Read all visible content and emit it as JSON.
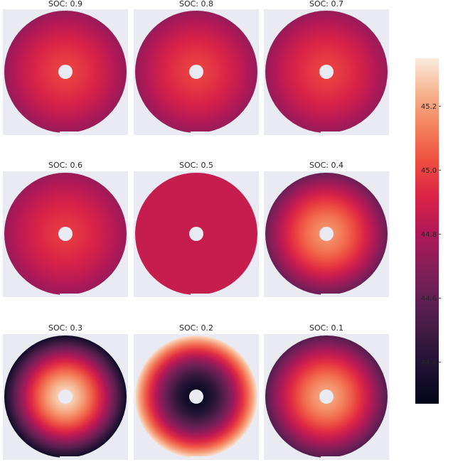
{
  "chart_data": {
    "type": "heatmap",
    "colormap": "rocket",
    "colorbar": {
      "range": [
        44.27,
        45.35
      ],
      "ticks": [
        44.4,
        44.6,
        44.8,
        45.0,
        45.2
      ],
      "tick_labels": [
        "44.4",
        "44.6",
        "44.8",
        "45.0",
        "45.2"
      ]
    },
    "panel_background": "#EAEAF2",
    "panels": [
      {
        "title": "SOC: 0.9",
        "center_value": 45.0,
        "edge_value": 44.74
      },
      {
        "title": "SOC: 0.8",
        "center_value": 45.0,
        "edge_value": 44.74
      },
      {
        "title": "SOC: 0.7",
        "center_value": 45.0,
        "edge_value": 44.74
      },
      {
        "title": "SOC: 0.6",
        "center_value": 44.98,
        "edge_value": 44.75
      },
      {
        "title": "SOC: 0.5",
        "center_value": 44.86,
        "edge_value": 44.86
      },
      {
        "title": "SOC: 0.4",
        "center_value": 45.18,
        "edge_value": 44.62
      },
      {
        "title": "SOC: 0.3",
        "center_value": 45.33,
        "edge_value": 44.32
      },
      {
        "title": "SOC: 0.2",
        "center_value": 44.27,
        "edge_value": 45.33
      },
      {
        "title": "SOC: 0.1",
        "center_value": 45.22,
        "edge_value": 44.55
      }
    ]
  }
}
